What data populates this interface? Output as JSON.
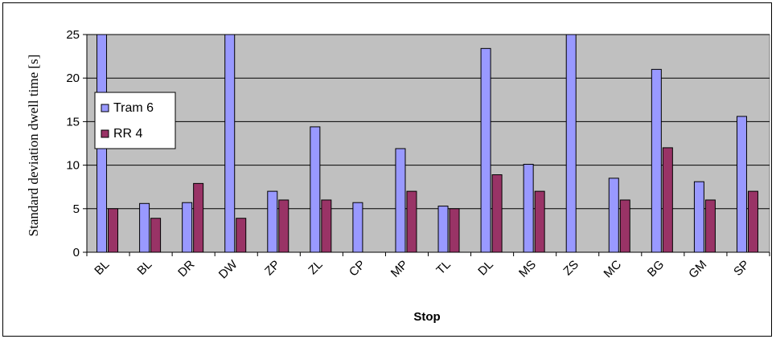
{
  "chart_data": {
    "type": "bar",
    "xlabel": "Stop",
    "ylabel": "Standard deviation dwell time [s]",
    "ylim": [
      0,
      25
    ],
    "yticks": [
      0,
      5,
      10,
      15,
      20,
      25
    ],
    "grid": true,
    "legend_position": "left",
    "categories": [
      "BL",
      "BL",
      "DR",
      "DW",
      "ZP",
      "ZL",
      "CP",
      "MP",
      "TL",
      "DL",
      "MS",
      "ZS",
      "MC",
      "BG",
      "GM",
      "SP"
    ],
    "series": [
      {
        "name": "Tram 6",
        "color": "#9999ff",
        "values": [
          25.5,
          5.6,
          5.7,
          25.5,
          7.0,
          14.4,
          5.7,
          11.9,
          5.3,
          23.4,
          10.1,
          25.5,
          8.5,
          21.0,
          8.1,
          15.6
        ]
      },
      {
        "name": "RR 4",
        "color": "#993366",
        "values": [
          5.0,
          3.9,
          7.9,
          3.9,
          6.0,
          6.0,
          null,
          7.0,
          5.0,
          8.9,
          7.0,
          null,
          6.0,
          12.0,
          6.0,
          7.0
        ]
      }
    ],
    "plot_background": "#c0c0c0"
  }
}
